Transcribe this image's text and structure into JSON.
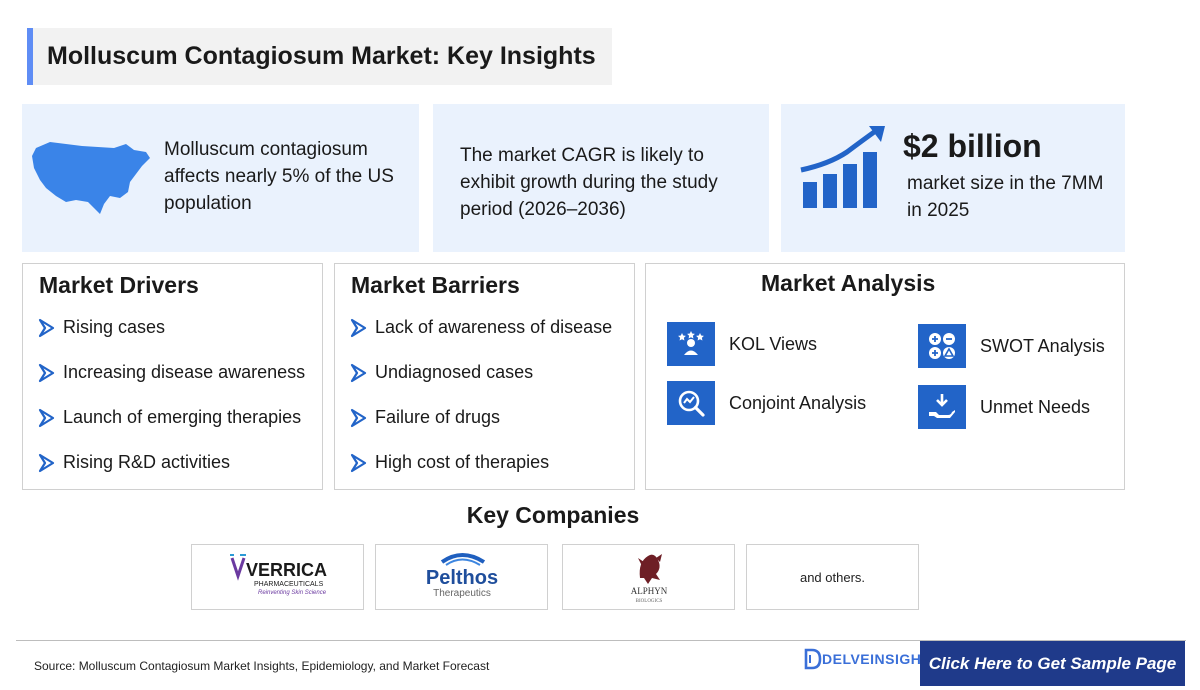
{
  "title": "Molluscum Contagiosum Market: Key Insights",
  "stats": {
    "prevalence": "Molluscum contagiosum affects nearly 5% of the US population",
    "cagr": "The market CAGR is likely to exhibit growth during the study period (2026–2036)",
    "size_value": "$2 billion",
    "size_text": "market size in the 7MM in 2025"
  },
  "drivers": {
    "heading": "Market Drivers",
    "items": [
      "Rising cases",
      "Increasing disease awareness",
      "Launch of emerging therapies",
      "Rising R&D activities"
    ]
  },
  "barriers": {
    "heading": "Market Barriers",
    "items": [
      "Lack of awareness of disease",
      "Undiagnosed cases",
      "Failure of drugs",
      "High cost of therapies"
    ]
  },
  "analysis": {
    "heading": "Market Analysis",
    "items": [
      {
        "label": "KOL Views",
        "icon": "kol-icon"
      },
      {
        "label": "SWOT Analysis",
        "icon": "swot-icon"
      },
      {
        "label": "Conjoint Analysis",
        "icon": "conjoint-icon"
      },
      {
        "label": "Unmet Needs",
        "icon": "unmet-needs-icon"
      }
    ]
  },
  "key_companies": {
    "heading": "Key Companies",
    "logos": [
      {
        "name": "VERRICA",
        "sub": "PHARMACEUTICALS",
        "tagline": "Reinventing Skin Science"
      },
      {
        "name": "Pelthos",
        "sub": "Therapeutics"
      },
      {
        "name": "ALPHYN",
        "sub": "BIOLOGICS"
      }
    ],
    "others": "and others."
  },
  "footer": {
    "source": "Source: Molluscum Contagiosum Market Insights, Epidemiology, and Market Forecast",
    "brand": "DELVEINSIGHT",
    "cta": "Click Here to Get Sample Page"
  },
  "colors": {
    "accent": "#5f8df5",
    "primary_blue": "#2264c8",
    "light_panel": "#eaf2fd",
    "navy": "#1f3a8a"
  }
}
